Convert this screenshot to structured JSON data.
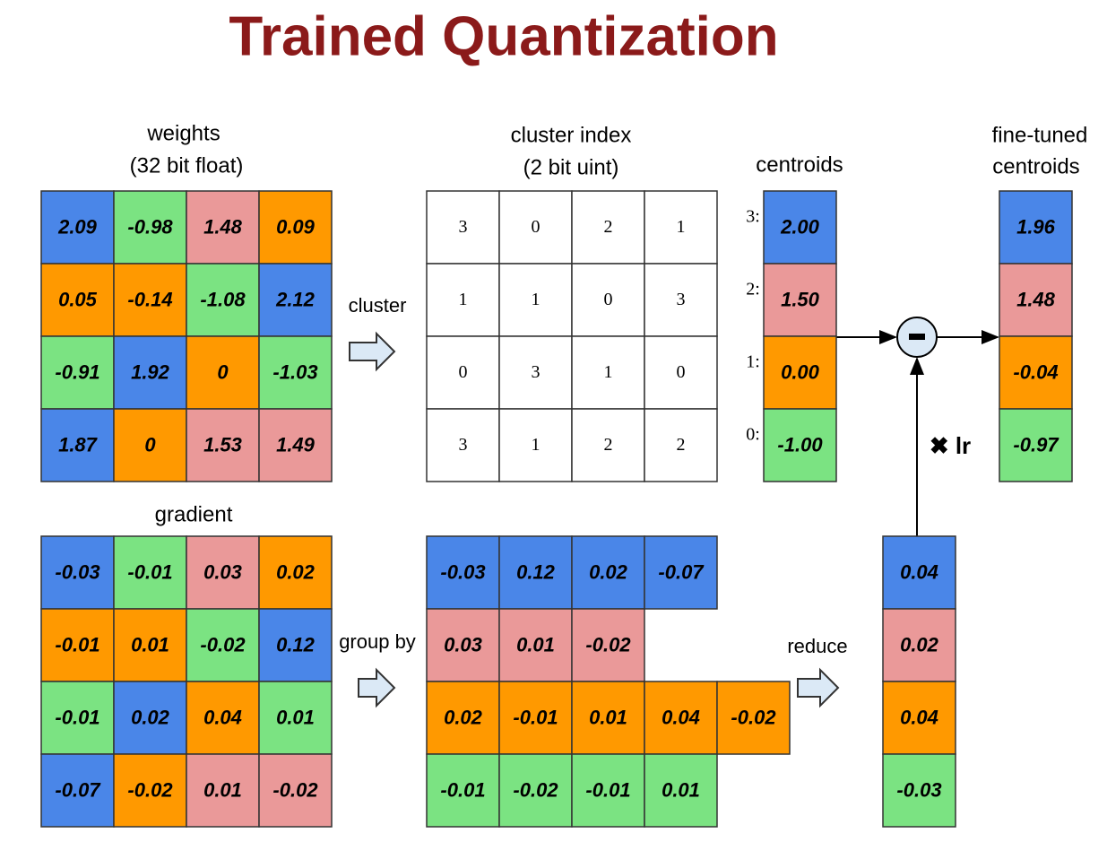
{
  "title": "Trained Quantization",
  "weights": {
    "label": [
      "weights",
      "(32 bit float)"
    ],
    "rows": [
      [
        "2.09",
        "-0.98",
        "1.48",
        "0.09"
      ],
      [
        "0.05",
        "-0.14",
        "-1.08",
        "2.12"
      ],
      [
        "-0.91",
        "1.92",
        "0",
        "-1.03"
      ],
      [
        "1.87",
        "0",
        "1.53",
        "1.49"
      ]
    ]
  },
  "cluster_index": {
    "label": [
      "cluster index",
      "(2 bit uint)"
    ],
    "rows": [
      [
        "3",
        "0",
        "2",
        "1"
      ],
      [
        "1",
        "1",
        "0",
        "3"
      ],
      [
        "0",
        "3",
        "1",
        "0"
      ],
      [
        "3",
        "1",
        "2",
        "2"
      ]
    ]
  },
  "centroids": {
    "label": "centroids",
    "indices": [
      "3:",
      "2:",
      "1:",
      "0:"
    ],
    "values": [
      "2.00",
      "1.50",
      "0.00",
      "-1.00"
    ]
  },
  "fine_tuned": {
    "label": [
      "fine-tuned",
      "centroids"
    ],
    "values": [
      "1.96",
      "1.48",
      "-0.04",
      "-0.97"
    ]
  },
  "gradient": {
    "label": "gradient",
    "rows": [
      [
        "-0.03",
        "-0.01",
        "0.03",
        "0.02"
      ],
      [
        "-0.01",
        "0.01",
        "-0.02",
        "0.12"
      ],
      [
        "-0.01",
        "0.02",
        "0.04",
        "0.01"
      ],
      [
        "-0.07",
        "-0.02",
        "0.01",
        "-0.02"
      ]
    ]
  },
  "grouped": {
    "rows": [
      [
        "-0.03",
        "0.12",
        "0.02",
        "-0.07"
      ],
      [
        "0.03",
        "0.01",
        "-0.02"
      ],
      [
        "0.02",
        "-0.01",
        "0.01",
        "0.04",
        "-0.02"
      ],
      [
        "-0.01",
        "-0.02",
        "-0.01",
        "0.01"
      ]
    ]
  },
  "reduced": {
    "values": [
      "0.04",
      "0.02",
      "0.04",
      "-0.03"
    ]
  },
  "steps": {
    "cluster": "cluster",
    "group_by": "group by",
    "reduce": "reduce",
    "lr": "✖ lr"
  }
}
